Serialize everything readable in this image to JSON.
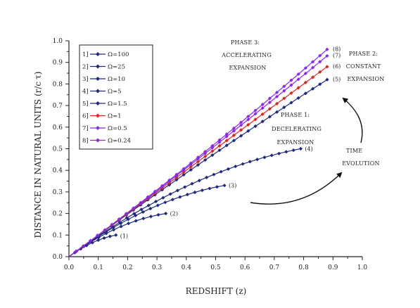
{
  "chart_data": {
    "type": "line",
    "title": "",
    "xlabel": "REDSHIFT (z)",
    "ylabel": "DISTANCE IN NATURAL UNITS (r/c",
    "ylabel_tau": "τ)",
    "xlim": [
      0,
      1.0
    ],
    "ylim": [
      0,
      1.0
    ],
    "xticks": [
      "0.0",
      "0.1",
      "0.2",
      "0.3",
      "0.4",
      "0.5",
      "0.6",
      "0.7",
      "0.8",
      "0.9",
      "1.0"
    ],
    "yticks": [
      "0.0",
      "0.1",
      "0.2",
      "0.3",
      "0.4",
      "0.5",
      "0.6",
      "0.7",
      "0.8",
      "0.9",
      "1.0"
    ],
    "grid": false,
    "legend_position": "top-left",
    "colors": {
      "navy": "#1f2a7a",
      "red": "#d42a1e",
      "purple": "#8a2be2"
    },
    "series": [
      {
        "legend_num": "1]",
        "name": "Ω=100",
        "label": "(1)",
        "color": "#1f2a7a",
        "zmax": 0.16,
        "ymax": 0.1
      },
      {
        "legend_num": "2]",
        "name": "Ω=25",
        "label": "(2)",
        "color": "#1f2a7a",
        "zmax": 0.33,
        "ymax": 0.2
      },
      {
        "legend_num": "3]",
        "name": "Ω=10",
        "label": "(3)",
        "color": "#1f2a7a",
        "zmax": 0.53,
        "ymax": 0.33
      },
      {
        "legend_num": "4]",
        "name": "Ω=5",
        "label": "(4)",
        "color": "#1f2a7a",
        "zmax": 0.79,
        "ymax": 0.5
      },
      {
        "legend_num": "5]",
        "name": "Ω=1.5",
        "label": "(5)",
        "color": "#1f2a7a",
        "zmax": 0.88,
        "ymax": 0.82
      },
      {
        "legend_num": "6]",
        "name": "Ω=1",
        "label": "(6)",
        "color": "#d42a1e",
        "zmax": 0.88,
        "ymax": 0.88
      },
      {
        "legend_num": "7]",
        "name": "Ω=0.5",
        "label": "(7)",
        "color": "#8a2be2",
        "zmax": 0.88,
        "ymax": 0.93
      },
      {
        "legend_num": "8]",
        "name": "Ω=0.24",
        "label": "(8)",
        "color": "#8a2be2",
        "zmax": 0.88,
        "ymax": 0.96
      }
    ],
    "annotations": {
      "phase3": [
        "PHASE 3:",
        "ACCELERATING",
        "EXPANSION"
      ],
      "phase2": [
        "PHASE 2:",
        "CONSTANT",
        "EXPANSION"
      ],
      "phase1": [
        "PHASE 1:",
        "DECELERATING",
        "EXPANSION"
      ],
      "time": [
        "TIME",
        "EVOLUTION"
      ]
    }
  }
}
